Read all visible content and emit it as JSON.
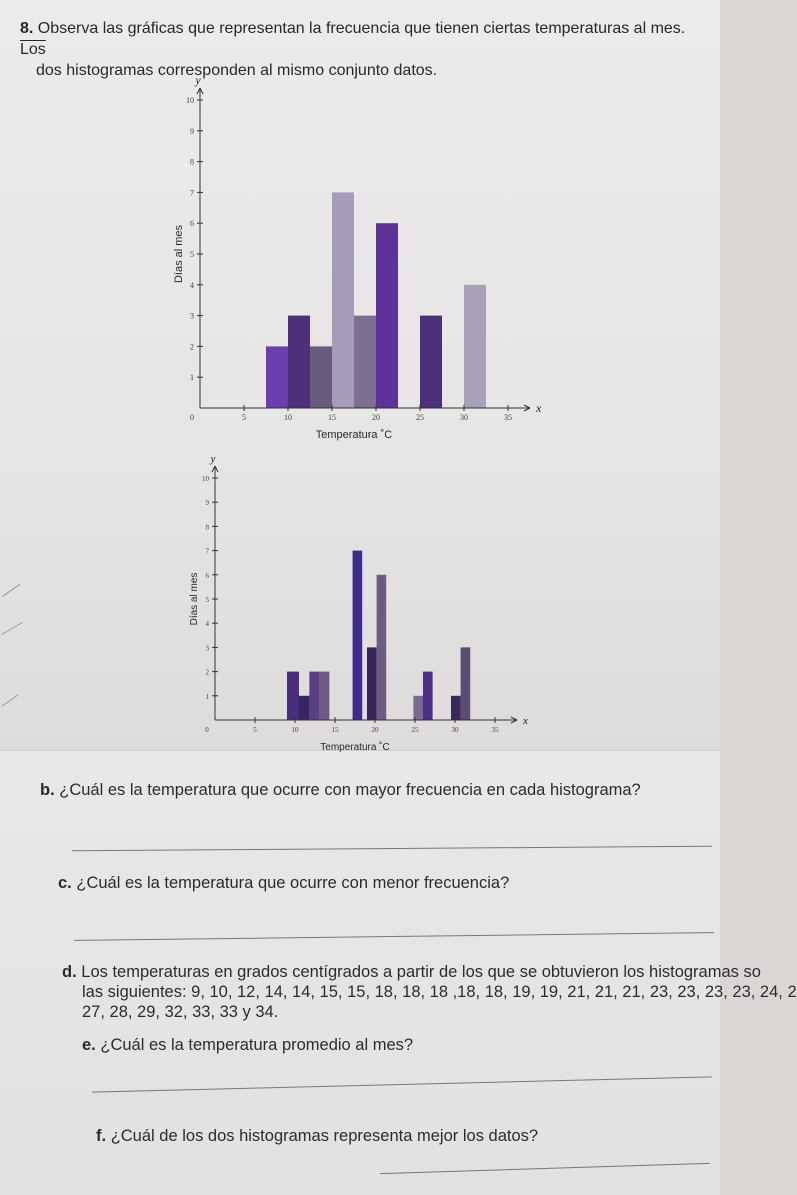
{
  "question8": {
    "number": "8.",
    "text_line1": "Observa las gráficas que representan la frecuencia que tienen ciertas temperaturas al mes.",
    "text_line1_tail": "Los",
    "text_line2": "dos histogramas corresponden al mismo conjunto datos."
  },
  "chart_data": [
    {
      "type": "bar",
      "xlabel": "Temperatura ˚C",
      "ylabel": "Días al mes",
      "x_axis_letter": "x",
      "y_axis_letter": "y",
      "xlim": [
        0,
        35
      ],
      "ylim": [
        0,
        10
      ],
      "x_ticks": [
        "0",
        "5",
        "10",
        "15",
        "20",
        "25",
        "30",
        "35"
      ],
      "y_ticks": [
        "1",
        "2",
        "3",
        "4",
        "5",
        "6",
        "7",
        "8",
        "9",
        "10"
      ],
      "bars": [
        {
          "x0": 7.5,
          "x1": 10,
          "value": 2,
          "color": "#6b3fb0"
        },
        {
          "x0": 10,
          "x1": 12.5,
          "value": 3,
          "color": "#4e2f7a"
        },
        {
          "x0": 12.5,
          "x1": 15,
          "value": 2,
          "color": "#6a5a7d"
        },
        {
          "x0": 15,
          "x1": 17.5,
          "value": 7,
          "color": "#a79cb8"
        },
        {
          "x0": 17.5,
          "x1": 20,
          "value": 3,
          "color": "#7d6e92"
        },
        {
          "x0": 20,
          "x1": 22.5,
          "value": 6,
          "color": "#5d339a"
        },
        {
          "x0": 25,
          "x1": 27.5,
          "value": 3,
          "color": "#4b2f78"
        },
        {
          "x0": 30,
          "x1": 32.5,
          "value": 4,
          "color": "#a99fb6"
        }
      ]
    },
    {
      "type": "bar",
      "xlabel": "Temperatura ˚C",
      "ylabel": "Días al mes",
      "x_axis_letter": "x",
      "y_axis_letter": "y",
      "xlim": [
        0,
        35
      ],
      "ylim": [
        0,
        10
      ],
      "x_ticks": [
        "0",
        "5",
        "10",
        "15",
        "20",
        "25",
        "30",
        "35"
      ],
      "y_ticks": [
        "1",
        "2",
        "3",
        "4",
        "5",
        "6",
        "7",
        "8",
        "9",
        "10"
      ],
      "bars": [
        {
          "x0": 9,
          "x1": 10.5,
          "value": 2,
          "color": "#4a2d7c"
        },
        {
          "x0": 10.5,
          "x1": 11.8,
          "value": 1,
          "color": "#3b2560"
        },
        {
          "x0": 11.8,
          "x1": 13,
          "value": 2,
          "color": "#5a3f85"
        },
        {
          "x0": 13,
          "x1": 14.3,
          "value": 2,
          "color": "#6d5b86"
        },
        {
          "x0": 17.2,
          "x1": 18.4,
          "value": 7,
          "color": "#3f2a8e"
        },
        {
          "x0": 19,
          "x1": 20.2,
          "value": 3,
          "color": "#3a2358"
        },
        {
          "x0": 20.2,
          "x1": 21.4,
          "value": 6,
          "color": "#6b5c80"
        },
        {
          "x0": 24.8,
          "x1": 26,
          "value": 1,
          "color": "#7a6a92"
        },
        {
          "x0": 26,
          "x1": 27.2,
          "value": 2,
          "color": "#4d2f8a"
        },
        {
          "x0": 29.5,
          "x1": 30.7,
          "value": 1,
          "color": "#3c275c"
        },
        {
          "x0": 30.7,
          "x1": 31.9,
          "value": 3,
          "color": "#5b4d73"
        }
      ]
    }
  ],
  "questions": {
    "b_letter": "b.",
    "b_text": "¿Cuál es la temperatura que ocurre con mayor frecuencia en cada histograma?",
    "c_letter": "c.",
    "c_text": "¿Cuál es la temperatura que ocurre con menor frecuencia?",
    "d_letter": "d.",
    "d_line1": "Los temperaturas en grados centígrados a partir de los que se obtuvieron los histogramas so",
    "d_line2": "las siguientes: 9, 10, 12, 14, 14, 15, 15, 18, 18, 18 ,18, 18, 19, 19, 21, 21, 21, 23, 23, 23, 23, 24, 2",
    "d_line3": "27, 28, 29, 32, 33, 33 y 34.",
    "e_letter": "e.",
    "e_text": "¿Cuál es la temperatura promedio al mes?",
    "f_letter": "f.",
    "f_text": "¿Cuál de los dos histogramas representa mejor los datos?"
  }
}
